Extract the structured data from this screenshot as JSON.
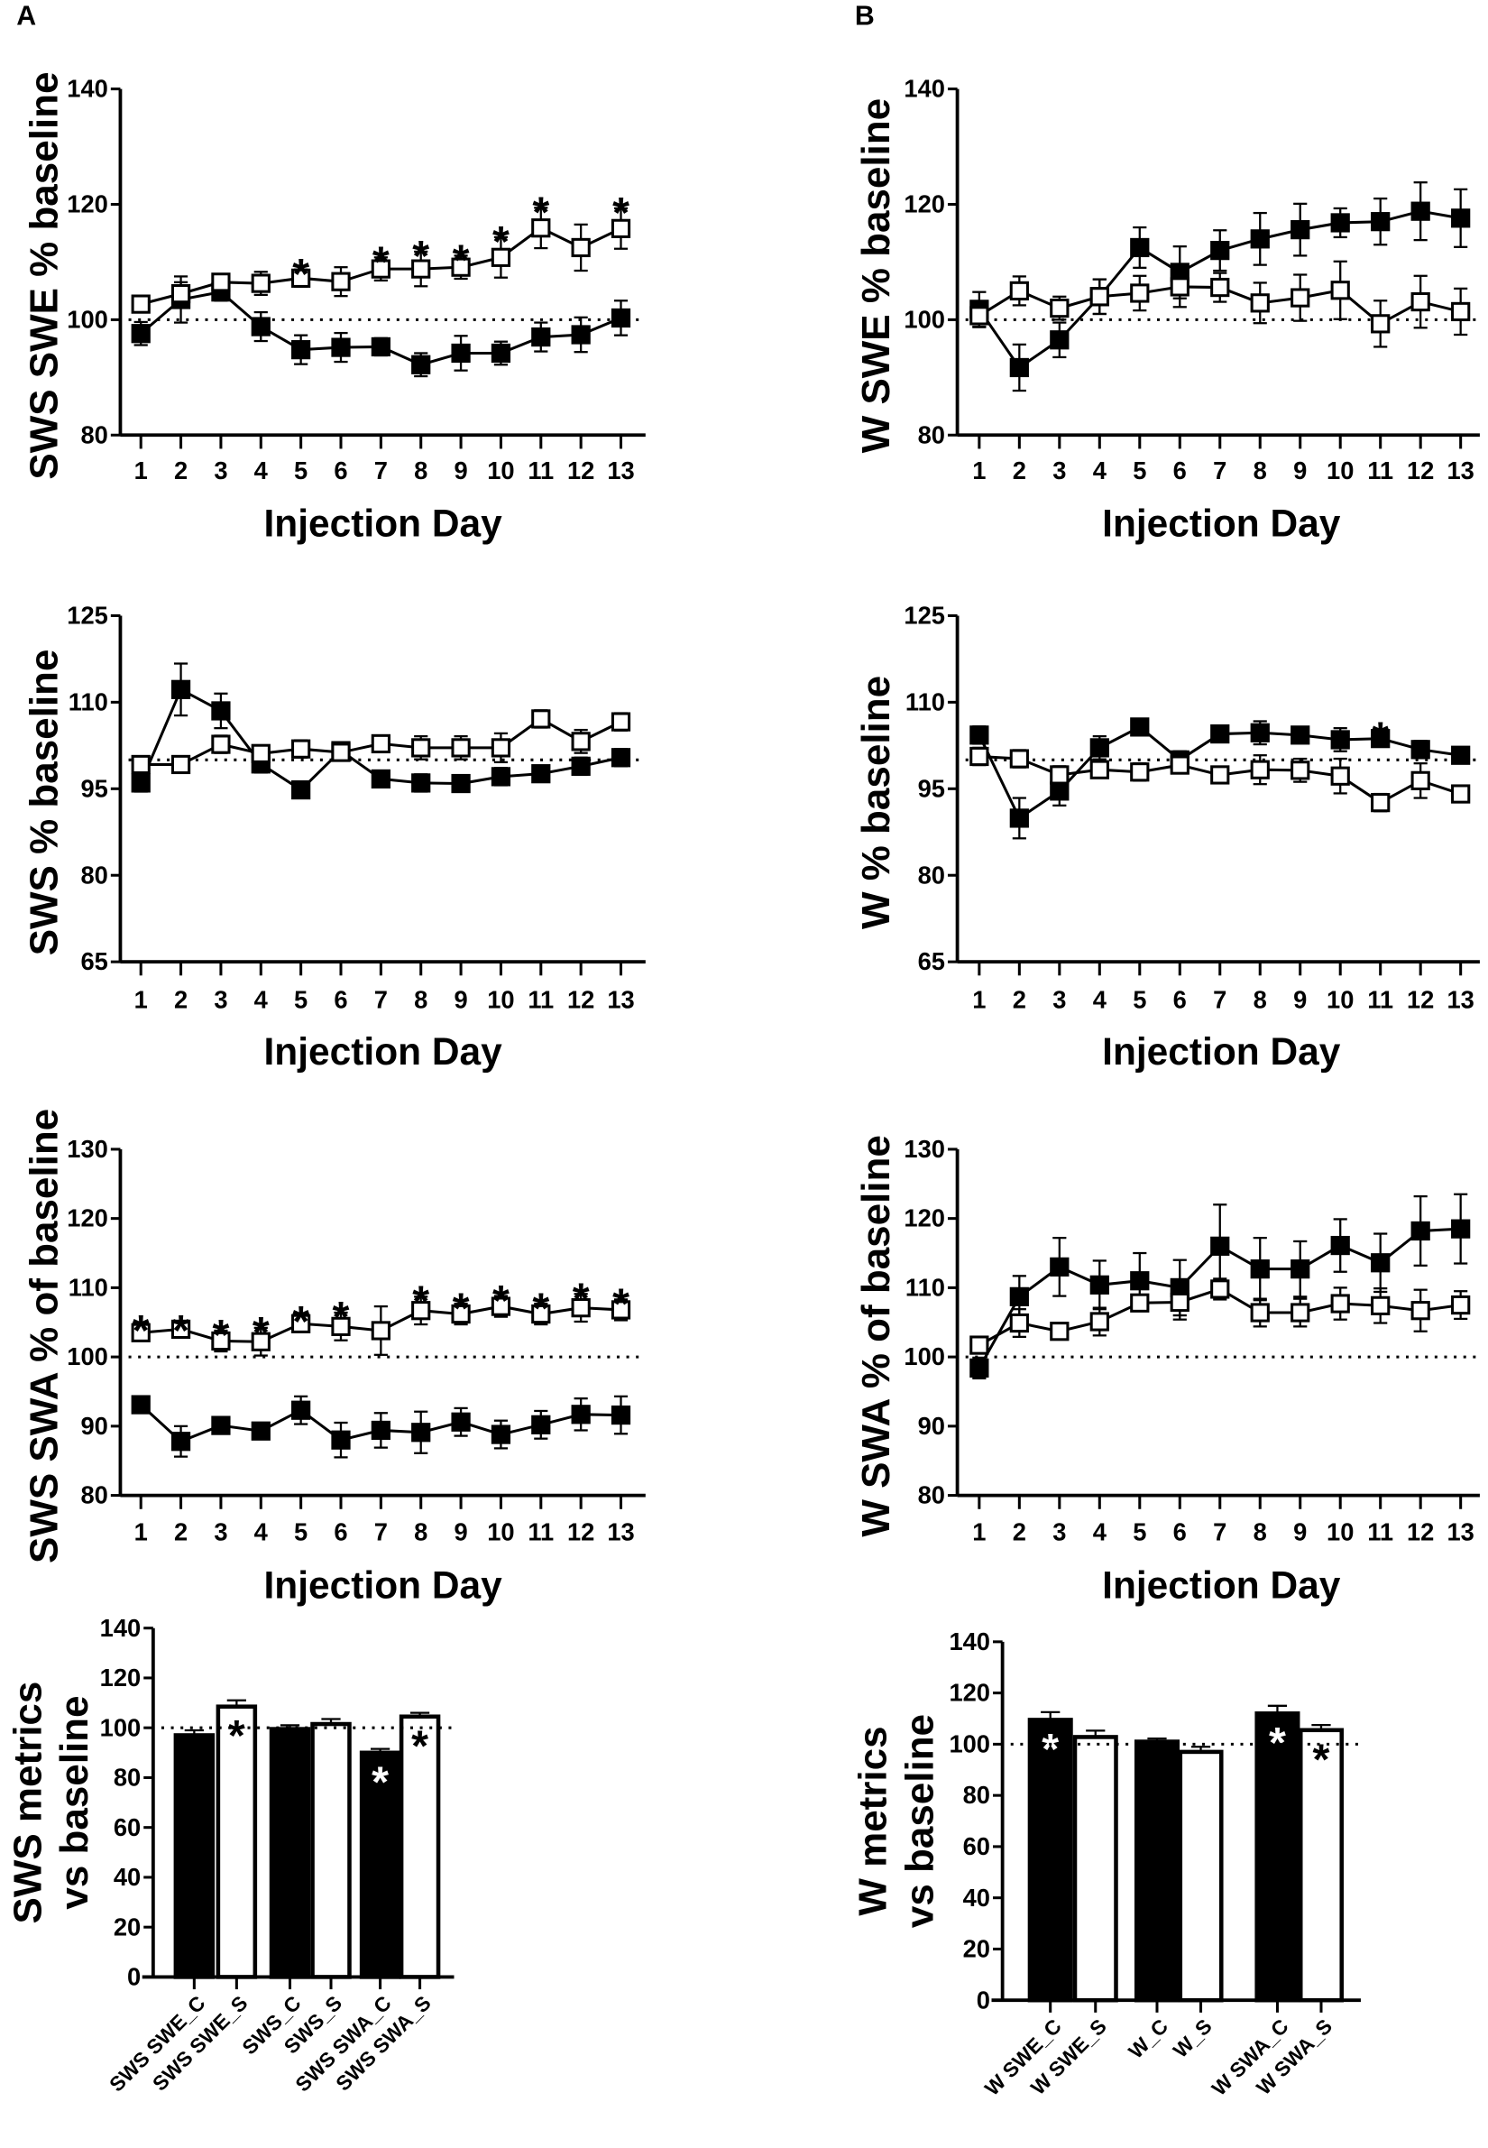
{
  "chart_data": [
    {
      "type": "line",
      "panel": "A",
      "ylabel": "SWS SWE % baseline",
      "xlabel": "Injection Day",
      "x": [
        1,
        2,
        3,
        4,
        5,
        6,
        7,
        8,
        9,
        10,
        11,
        12,
        13
      ],
      "ylim": [
        80,
        140
      ],
      "yticks": [
        80,
        100,
        120,
        140
      ],
      "reference_line": 100,
      "series": [
        {
          "name": "open",
          "marker": "open-square",
          "values": [
            102.7,
            104.5,
            106.5,
            106.3,
            107.2,
            106.6,
            108.8,
            108.8,
            109.1,
            110.8,
            115.9,
            112.5,
            115.8
          ],
          "sem": [
            1,
            2,
            1,
            2,
            1.5,
            2.5,
            2,
            3,
            2,
            3.5,
            3.5,
            4,
            3.5
          ]
        },
        {
          "name": "filled",
          "marker": "filled-square",
          "values": [
            97.6,
            103.5,
            104.8,
            98.8,
            94.8,
            95.2,
            95.3,
            92.2,
            94.2,
            94.2,
            97.0,
            97.4,
            100.3
          ],
          "sem": [
            2,
            4,
            1.5,
            2.5,
            2.5,
            2.5,
            1.5,
            2,
            3,
            2,
            2.5,
            3,
            3
          ]
        }
      ],
      "significance_marker": "*",
      "significant_days": [
        5,
        7,
        8,
        9,
        10,
        11,
        13
      ]
    },
    {
      "type": "line",
      "panel": "B",
      "ylabel": "W SWE % baseline",
      "xlabel": "Injection Day",
      "x": [
        1,
        2,
        3,
        4,
        5,
        6,
        7,
        8,
        9,
        10,
        11,
        12,
        13
      ],
      "ylim": [
        80,
        140
      ],
      "yticks": [
        80,
        100,
        120,
        140
      ],
      "reference_line": 100,
      "series": [
        {
          "name": "open",
          "marker": "open-square",
          "values": [
            100.7,
            105,
            102,
            104,
            104.6,
            105.7,
            105.6,
            102.9,
            103.8,
            105.1,
            99.3,
            103.1,
            101.4
          ],
          "sem": [
            2,
            2.5,
            2,
            3,
            3,
            3.5,
            2.5,
            3.5,
            4,
            5,
            4,
            4.5,
            4
          ]
        },
        {
          "name": "filled",
          "marker": "filled-square",
          "values": [
            101.8,
            91.7,
            96.5,
            104,
            112.5,
            108.2,
            112,
            114,
            115.6,
            116.8,
            117,
            118.8,
            117.6
          ],
          "sem": [
            3,
            4,
            3,
            3,
            3.5,
            4.5,
            3.5,
            4.5,
            4.5,
            2.5,
            4,
            5,
            5
          ]
        }
      ],
      "significance_marker": "*",
      "significant_days": []
    },
    {
      "type": "line",
      "ylabel": "SWS % baseline",
      "xlabel": "Injection Day",
      "x": [
        1,
        2,
        3,
        4,
        5,
        6,
        7,
        8,
        9,
        10,
        11,
        12,
        13
      ],
      "ylim": [
        65,
        125
      ],
      "yticks": [
        65,
        80,
        95,
        110,
        125
      ],
      "reference_line": 100,
      "series": [
        {
          "name": "open",
          "marker": "open-square",
          "values": [
            99.2,
            99.2,
            102.7,
            101.1,
            101.9,
            101.3,
            102.8,
            102.1,
            102.1,
            102.1,
            107.1,
            103.2,
            106.6
          ],
          "sem": [
            1,
            1,
            1.5,
            1,
            1.5,
            1,
            1,
            2,
            2,
            2.5,
            1.5,
            2,
            1.5
          ]
        },
        {
          "name": "filled",
          "marker": "filled-square",
          "values": [
            96,
            112.2,
            108.5,
            99.3,
            94.8,
            101.6,
            96.7,
            96,
            95.9,
            97.1,
            97.6,
            98.9,
            100.4
          ],
          "sem": [
            1.5,
            4.5,
            3,
            1.5,
            1,
            1,
            0.5,
            1.5,
            0.5,
            1.5,
            1,
            1.5,
            1.5
          ]
        }
      ],
      "significance_marker": "*",
      "significant_days": []
    },
    {
      "type": "line",
      "ylabel": "W % baseline",
      "xlabel": "Injection Day",
      "x": [
        1,
        2,
        3,
        4,
        5,
        6,
        7,
        8,
        9,
        10,
        11,
        12,
        13
      ],
      "ylim": [
        65,
        125
      ],
      "yticks": [
        65,
        80,
        95,
        110,
        125
      ],
      "reference_line": 100,
      "series": [
        {
          "name": "open",
          "marker": "open-square",
          "values": [
            100.6,
            100.2,
            97.4,
            98.3,
            97.9,
            99.1,
            97.4,
            98.3,
            98.2,
            97.2,
            92.6,
            96.4,
            94.1
          ],
          "sem": [
            1.5,
            1.5,
            1.5,
            1,
            1.5,
            1,
            1,
            2.5,
            2,
            3,
            1.5,
            3,
            1
          ]
        },
        {
          "name": "filled",
          "marker": "filled-square",
          "values": [
            104.3,
            89.9,
            94.6,
            102.1,
            105.7,
            100,
            104.5,
            104.7,
            104.3,
            103.5,
            103.7,
            101.8,
            100.8
          ],
          "sem": [
            1.5,
            3.5,
            2.5,
            2,
            0.5,
            1.5,
            1,
            2,
            1,
            2,
            1,
            1.5,
            1
          ]
        }
      ],
      "significance_marker": "*",
      "significant_days": [
        11
      ]
    },
    {
      "type": "line",
      "ylabel": "SWS SWA % of baseline",
      "xlabel": "Injection Day",
      "x": [
        1,
        2,
        3,
        4,
        5,
        6,
        7,
        8,
        9,
        10,
        11,
        12,
        13
      ],
      "ylim": [
        80,
        130
      ],
      "yticks": [
        80,
        90,
        100,
        110,
        120,
        130
      ],
      "reference_line": 100,
      "series": [
        {
          "name": "open",
          "marker": "open-square",
          "values": [
            103.5,
            104,
            102.3,
            102.2,
            104.8,
            104.4,
            103.8,
            106.7,
            106.2,
            107.3,
            106.2,
            107.1,
            106.8
          ],
          "sem": [
            1,
            0.5,
            1.5,
            2,
            1,
            2,
            3.5,
            2,
            1.5,
            1.5,
            1.5,
            2,
            1.5
          ]
        },
        {
          "name": "filled",
          "marker": "filled-square",
          "values": [
            93.1,
            87.8,
            90.1,
            89.3,
            92.3,
            88,
            89.4,
            89.1,
            90.6,
            88.8,
            90.2,
            91.7,
            91.6
          ],
          "sem": [
            1.2,
            2.2,
            1.2,
            0.5,
            2,
            2.5,
            2.5,
            3,
            2,
            2,
            2,
            2.3,
            2.7
          ]
        }
      ],
      "significance_marker": "*",
      "significant_days": [
        1,
        2,
        3,
        4,
        5,
        6,
        8,
        9,
        10,
        11,
        12,
        13
      ]
    },
    {
      "type": "line",
      "ylabel": "W SWA % of baseline",
      "xlabel": "Injection Day",
      "x": [
        1,
        2,
        3,
        4,
        5,
        6,
        7,
        8,
        9,
        10,
        11,
        12,
        13
      ],
      "ylim": [
        80,
        130
      ],
      "yticks": [
        80,
        90,
        100,
        110,
        120,
        130
      ],
      "reference_line": 100,
      "series": [
        {
          "name": "open",
          "marker": "open-square",
          "values": [
            101.7,
            104.9,
            103.7,
            105.1,
            107.8,
            107.9,
            109.8,
            106.4,
            106.4,
            107.7,
            107.4,
            106.7,
            107.5
          ],
          "sem": [
            0.8,
            2,
            0.8,
            2,
            1,
            2.5,
            1.5,
            2,
            2,
            2.3,
            2.5,
            3,
            2
          ]
        },
        {
          "name": "filled",
          "marker": "filled-square",
          "values": [
            98.4,
            108.7,
            113,
            110.4,
            111,
            110,
            116,
            112.7,
            112.7,
            116.1,
            113.6,
            118.2,
            118.5
          ],
          "sem": [
            1.5,
            3,
            4.2,
            3.5,
            4,
            4,
            6,
            4.5,
            4,
            3.8,
            4.2,
            5,
            5
          ]
        }
      ],
      "significance_marker": "*",
      "significant_days": []
    },
    {
      "type": "bar",
      "ylabel": [
        "SWS metrics",
        "vs baseline"
      ],
      "categories": [
        "SWS SWE_C",
        "SWS SWE_S",
        "SWS_C",
        "SWS_S",
        "SWS SWA_C",
        "SWS SWA_S"
      ],
      "values": [
        97,
        108.5,
        99.5,
        101.5,
        90,
        104.5
      ],
      "sem": [
        2,
        2.5,
        1.5,
        2,
        1.5,
        1.5
      ],
      "fills": [
        "#000000",
        "#ffffff",
        "#000000",
        "#ffffff",
        "#000000",
        "#ffffff"
      ],
      "significant": [
        false,
        true,
        false,
        false,
        true,
        true
      ],
      "significance_marker": "*",
      "ylim": [
        0,
        140
      ],
      "yticks": [
        0,
        20,
        40,
        60,
        80,
        100,
        120,
        140
      ],
      "reference_line": 100
    },
    {
      "type": "bar",
      "ylabel": [
        "W metrics",
        "vs baseline"
      ],
      "categories": [
        "W SWE_C",
        "W SWE_S",
        "W_C",
        "W_S",
        "W SWA_C",
        "W SWA_S"
      ],
      "values": [
        109.5,
        102.8,
        101,
        97,
        112,
        105.5
      ],
      "sem": [
        3,
        2.5,
        1.2,
        2,
        3,
        2
      ],
      "fills": [
        "#000000",
        "#ffffff",
        "#000000",
        "#ffffff",
        "#000000",
        "#ffffff"
      ],
      "significant": [
        true,
        false,
        false,
        false,
        true,
        true
      ],
      "significance_marker": "*",
      "ylim": [
        0,
        140
      ],
      "yticks": [
        0,
        20,
        40,
        60,
        80,
        100,
        120,
        140
      ],
      "reference_line": 100
    }
  ]
}
